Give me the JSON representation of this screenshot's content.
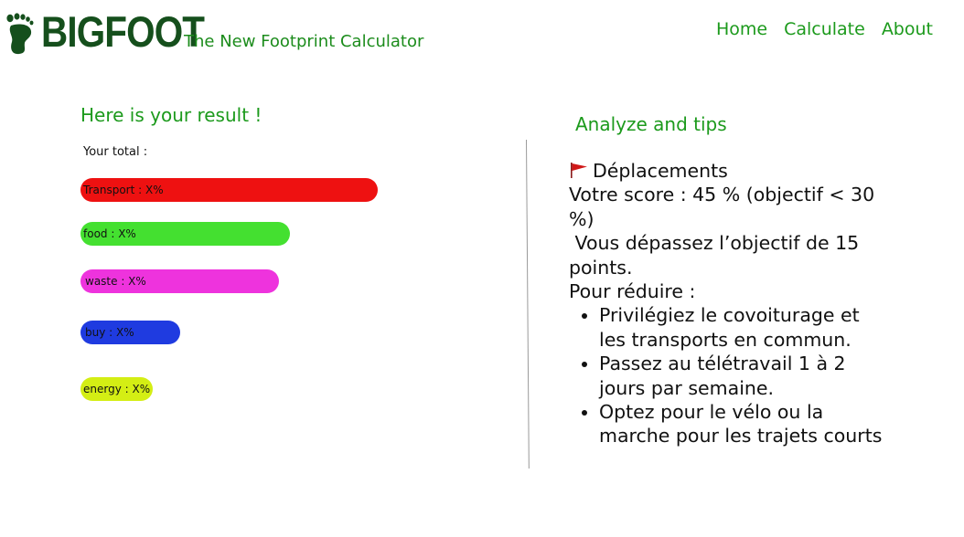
{
  "header": {
    "logo_text": "BIGFOOT",
    "tagline": "The New Footprint Calculator",
    "nav": [
      {
        "label": "Home"
      },
      {
        "label": "Calculate"
      },
      {
        "label": "About"
      }
    ]
  },
  "result": {
    "title": "Here is your result !",
    "total_label": "Your total :",
    "bars": [
      {
        "label": "Transport : X%",
        "color": "#ee1111"
      },
      {
        "label": "food : X%",
        "color": "#44e030"
      },
      {
        "label": "waste : X%",
        "color": "#ee33dd"
      },
      {
        "label": "buy : X%",
        "color": "#1f3be0"
      },
      {
        "label": "energy : X%",
        "color": "#d4ee14"
      }
    ]
  },
  "tips": {
    "title": "Analyze and tips",
    "category": "Déplacements",
    "score_line": "Votre score : 45 % (objectif < 30 %)",
    "exceed_line": " Vous dépassez l’objectif de 15 points.",
    "reduce_label": "Pour réduire :",
    "items": [
      "Privilégiez le covoiturage et les transports en commun.",
      "Passez au télétravail 1 à 2 jours par semaine.",
      "Optez pour le vélo ou la marche pour les trajets courts"
    ]
  }
}
